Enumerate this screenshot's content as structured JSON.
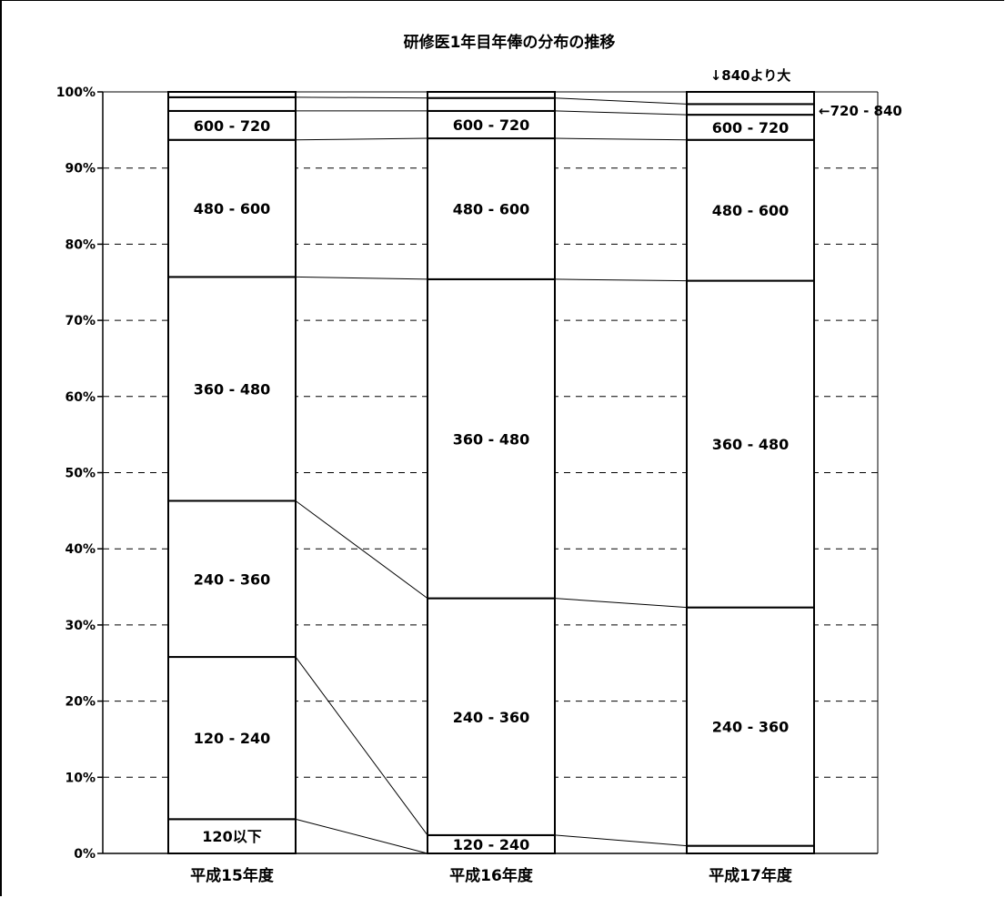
{
  "chart_data": {
    "type": "bar",
    "stacked": true,
    "normalized": true,
    "title": "研修医1年目年俸の分布の推移",
    "categories": [
      "平成15年度",
      "平成16年度",
      "平成17年度"
    ],
    "y_ticks": [
      "0%",
      "10%",
      "20%",
      "30%",
      "40%",
      "50%",
      "60%",
      "70%",
      "80%",
      "90%",
      "100%"
    ],
    "ylim": [
      0,
      100
    ],
    "grid": "horizontal dashed",
    "connector_lines": true,
    "series": [
      {
        "name": "120以下",
        "values": [
          4.5,
          0.0,
          0.0
        ]
      },
      {
        "name": "120 - 240",
        "values": [
          21.3,
          2.4,
          1.0
        ]
      },
      {
        "name": "240 - 360",
        "values": [
          20.5,
          31.1,
          31.3
        ]
      },
      {
        "name": "360 - 480",
        "values": [
          29.4,
          41.9,
          42.9
        ]
      },
      {
        "name": "480 - 600",
        "values": [
          18.0,
          18.5,
          18.5
        ]
      },
      {
        "name": "600 - 720",
        "values": [
          3.8,
          3.6,
          3.3
        ]
      },
      {
        "name": "720 - 840",
        "values": [
          1.8,
          1.7,
          1.4
        ]
      },
      {
        "name": "840より大",
        "values": [
          0.7,
          0.8,
          1.6
        ]
      }
    ],
    "segment_labels": [
      [
        "120以下",
        "120 - 240",
        "240 - 360",
        "360 - 480",
        "480 - 600",
        "600 - 720",
        "",
        ""
      ],
      [
        "",
        "120 - 240",
        "240 - 360",
        "360 - 480",
        "480 - 600",
        "600 - 720",
        "",
        ""
      ],
      [
        "",
        "",
        "240 - 360",
        "360 - 480",
        "480 - 600",
        "600 - 720",
        "",
        ""
      ]
    ],
    "annotations": {
      "over_840": "↓840より大",
      "range_720_840": "←720 - 840"
    }
  }
}
